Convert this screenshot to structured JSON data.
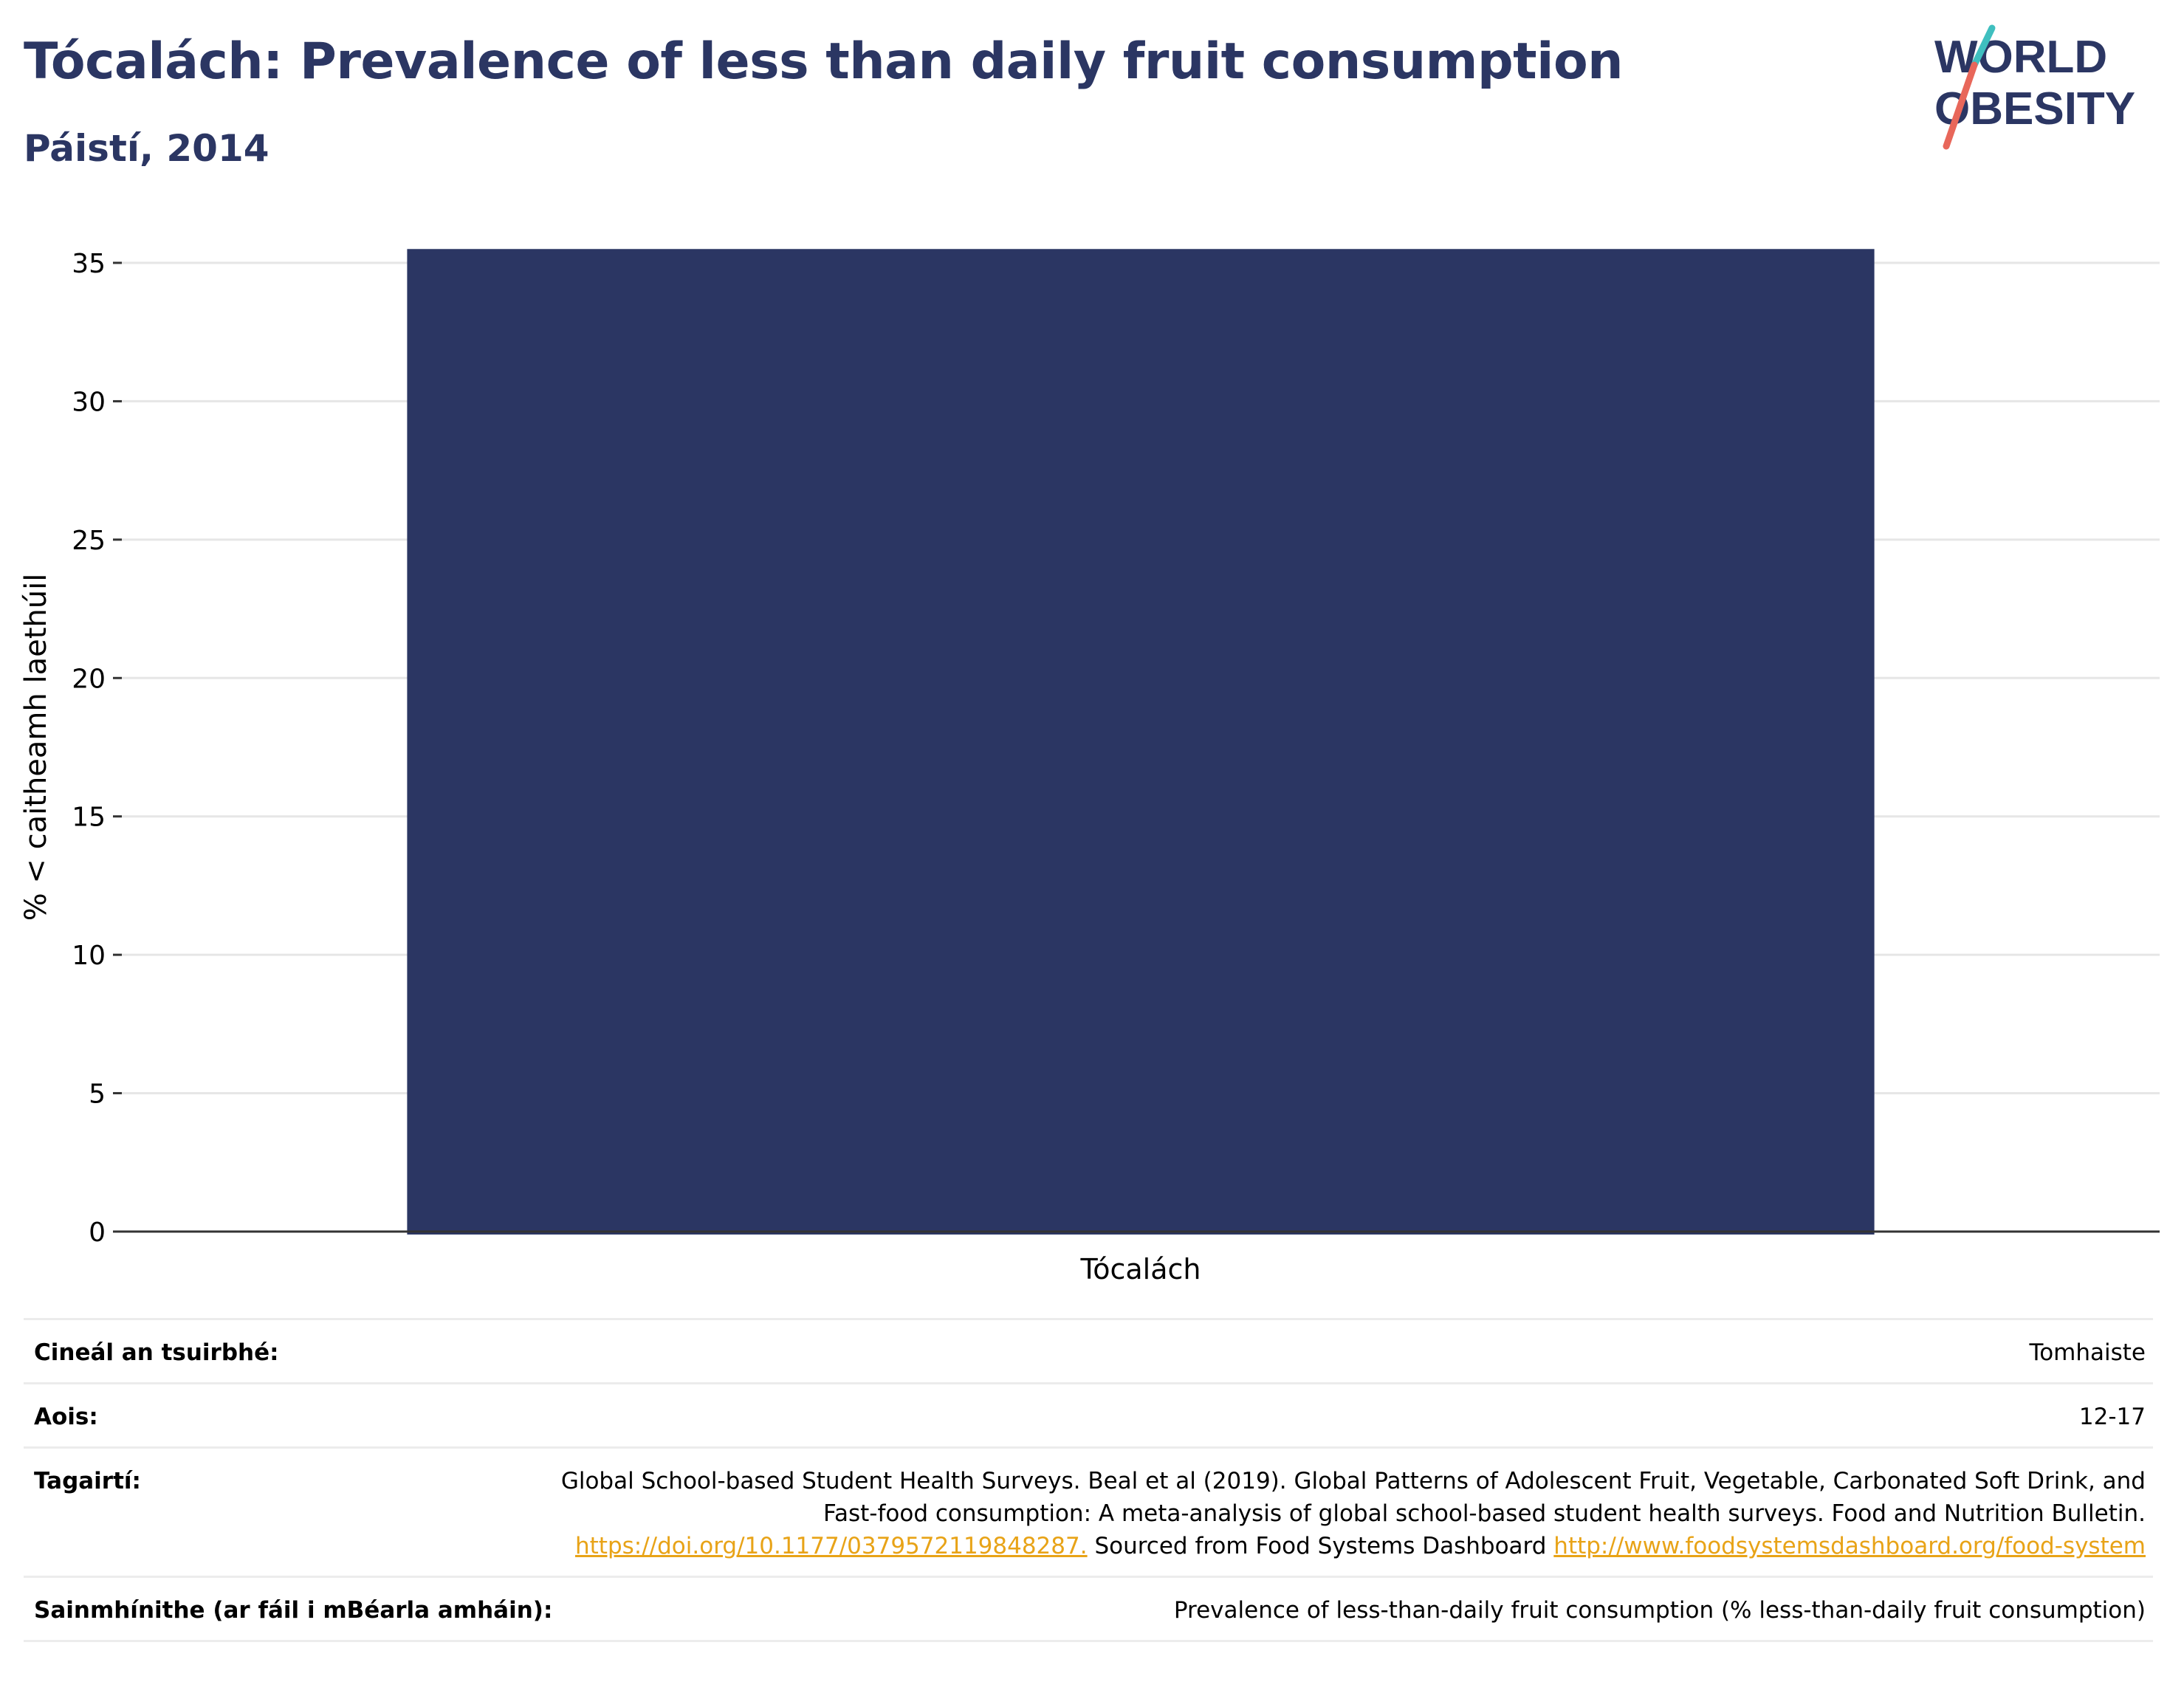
{
  "header": {
    "title": "Tócalách: Prevalence of less than daily fruit consumption",
    "subtitle": "Páistí, 2014"
  },
  "logo": {
    "line1": "WORLD",
    "line2": "OBESITY",
    "accent_teal": "#3fbfbf",
    "accent_coral": "#e8675a",
    "text_color": "#2b3663"
  },
  "chart_data": {
    "type": "bar",
    "categories": [
      "Tócalách"
    ],
    "values": [
      35.5
    ],
    "ylabel": "% < caitheamh laethúil",
    "xlabel": "",
    "ylim": [
      0,
      35
    ],
    "yticks": [
      0,
      5,
      10,
      15,
      20,
      25,
      30,
      35
    ],
    "grid": true,
    "bar_color": "#2b3663"
  },
  "meta": {
    "survey_type_label": "Cineál an tsuirbhé:",
    "survey_type_value": "Tomhaiste",
    "age_label": "Aois:",
    "age_value": "12-17",
    "references_label": "Tagairtí:",
    "references_text1": "Global School-based Student Health Surveys. Beal et al (2019). Global Patterns of Adolescent Fruit, Vegetable, Carbonated Soft Drink, and Fast-food consumption: A meta-analysis of global school-based student health surveys. Food and Nutrition Bulletin.",
    "references_link1": "https://doi.org/10.1177/0379572119848287.",
    "references_text2": "Sourced from Food Systems Dashboard",
    "references_link2": "http://www.foodsystemsdashboard.org/food-system",
    "definition_label": "Sainmhínithe (ar fáil i mBéarla amháin):",
    "definition_value": "Prevalence of less-than-daily fruit consumption (% less-than-daily fruit consumption)"
  }
}
